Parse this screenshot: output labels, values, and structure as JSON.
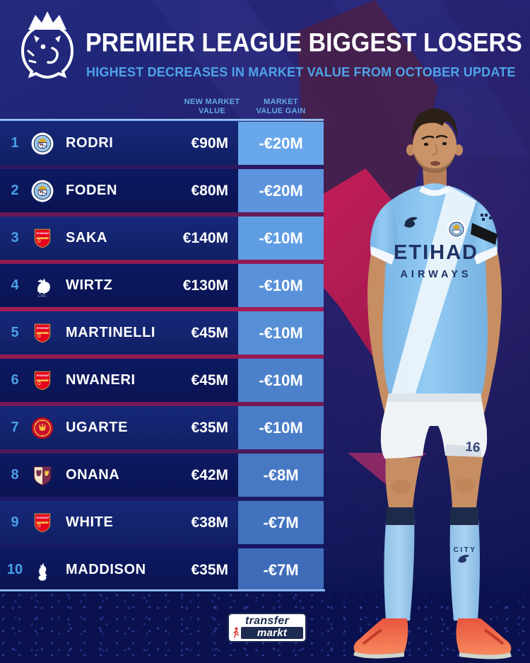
{
  "header": {
    "title": "PREMIER LEAGUE BIGGEST LOSERS",
    "subtitle": "HIGHEST DECREASES IN MARKET VALUE FROM OCTOBER UPDATE"
  },
  "table": {
    "columns": [
      {
        "line1": "NEW MARKET",
        "line2": "VALUE"
      },
      {
        "line1": "MARKET",
        "line2": "VALUE GAIN"
      }
    ],
    "rows": [
      {
        "rank": "1",
        "club": "Manchester City",
        "club_key": "man-city",
        "player": "RODRI",
        "value": "€90M",
        "gain": "-€20M"
      },
      {
        "rank": "2",
        "club": "Manchester City",
        "club_key": "man-city",
        "player": "FODEN",
        "value": "€80M",
        "gain": "-€20M"
      },
      {
        "rank": "3",
        "club": "Arsenal",
        "club_key": "arsenal",
        "player": "SAKA",
        "value": "€140M",
        "gain": "-€10M"
      },
      {
        "rank": "4",
        "club": "Liverpool",
        "club_key": "liverpool",
        "player": "WIRTZ",
        "value": "€130M",
        "gain": "-€10M"
      },
      {
        "rank": "5",
        "club": "Arsenal",
        "club_key": "arsenal",
        "player": "MARTINELLI",
        "value": "€45M",
        "gain": "-€10M"
      },
      {
        "rank": "6",
        "club": "Arsenal",
        "club_key": "arsenal",
        "player": "NWANERI",
        "value": "€45M",
        "gain": "-€10M"
      },
      {
        "rank": "7",
        "club": "Manchester United",
        "club_key": "man-united",
        "player": "UGARTE",
        "value": "€35M",
        "gain": "-€10M"
      },
      {
        "rank": "8",
        "club": "Aston Villa",
        "club_key": "aston-villa",
        "player": "ONANA",
        "value": "€42M",
        "gain": "-€8M"
      },
      {
        "rank": "9",
        "club": "Arsenal",
        "club_key": "arsenal",
        "player": "WHITE",
        "value": "€38M",
        "gain": "-€7M"
      },
      {
        "rank": "10",
        "club": "Tottenham Hotspur",
        "club_key": "tottenham",
        "player": "MADDISON",
        "value": "€35M",
        "gain": "-€7M"
      }
    ]
  },
  "player_image": {
    "shirt_sponsor_line1": "ETIHAD",
    "shirt_sponsor_line2": "AIRWAYS",
    "sock_text": "CITY",
    "shorts_number": "16"
  },
  "footer": {
    "brand_line1": "transfer",
    "brand_line2": "markt"
  },
  "colors": {
    "accent_blue": "#4fa3e8",
    "row_odd": "#16287a",
    "row_even": "#0d1961",
    "table_line": "#a9d4f6",
    "crimson": "#b11d56",
    "gain_cell_colors": [
      "#68a7ea",
      "#5c94de",
      "#5f9de2",
      "#5991da",
      "#568fd6",
      "#4d81cc",
      "#4a7dc8",
      "#4678c3",
      "#4272be",
      "#3f6cb9"
    ]
  }
}
